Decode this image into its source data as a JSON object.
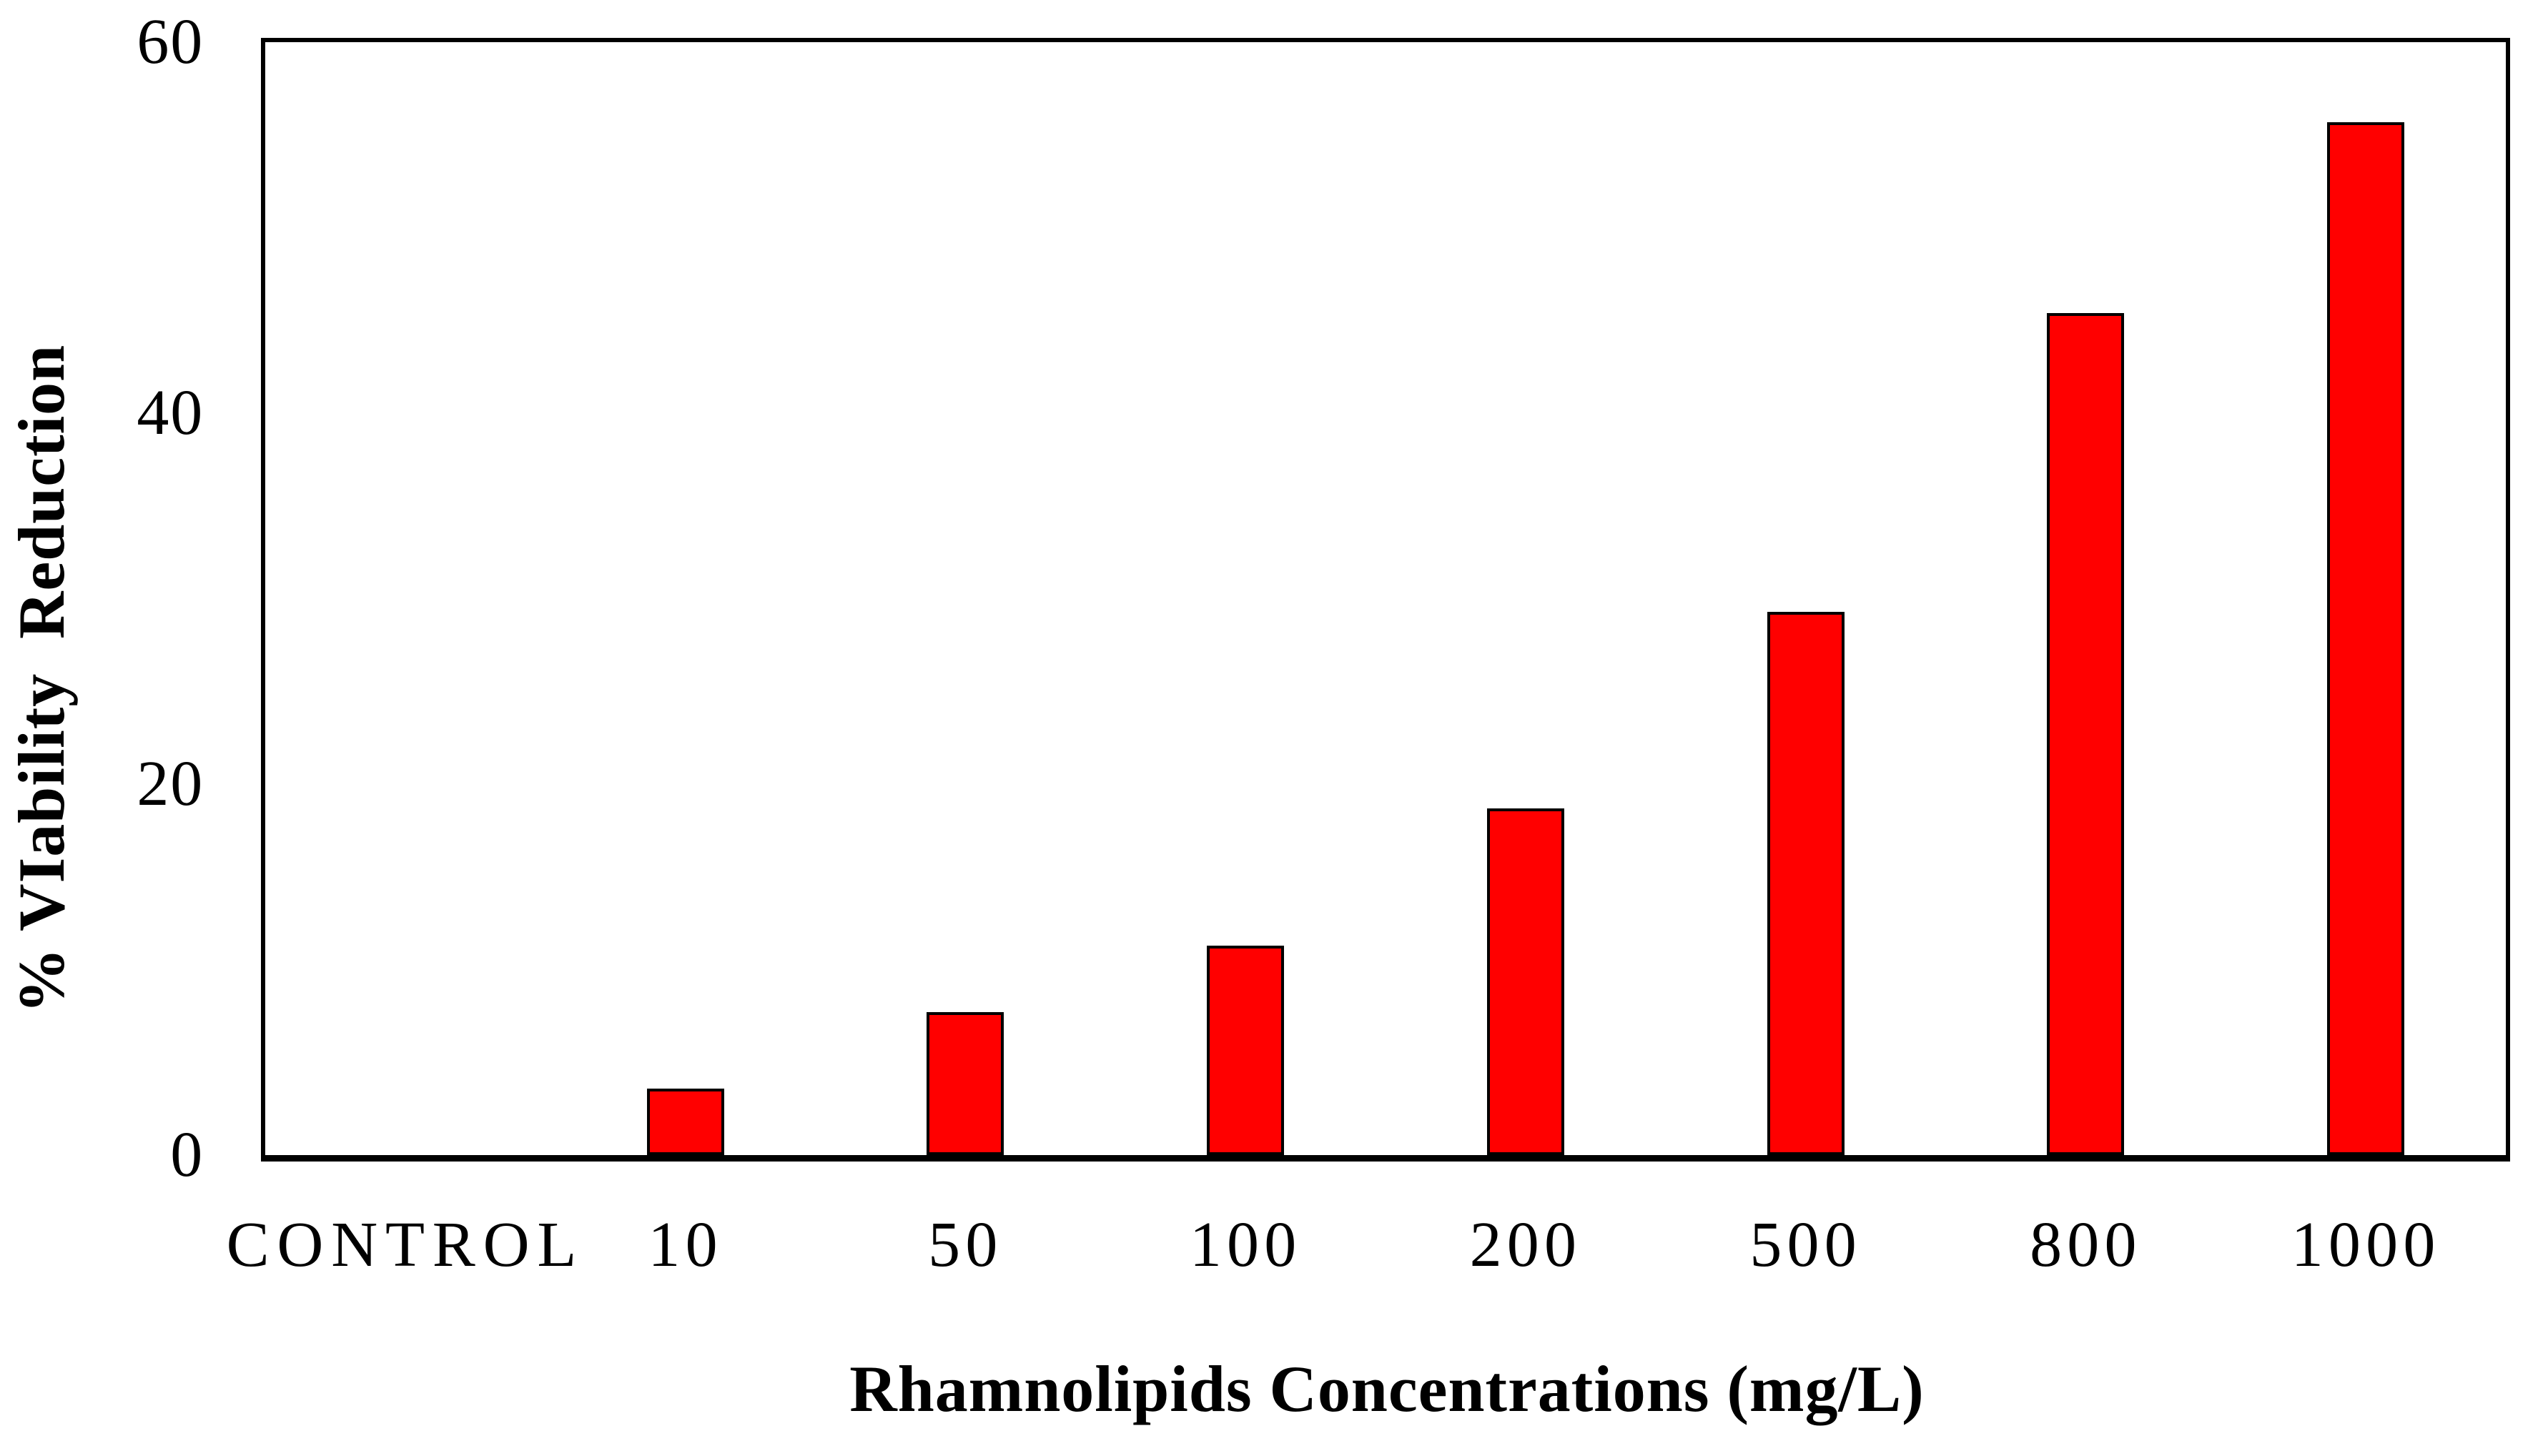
{
  "chart_data": {
    "type": "bar",
    "title": "",
    "categories": [
      "CONTROL",
      "10",
      "50",
      "100",
      "200",
      "500",
      "800",
      "1000"
    ],
    "values": [
      0,
      3.6,
      7.7,
      11.3,
      18.7,
      29.3,
      45.4,
      55.7
    ],
    "xlabel": "Rhamnolipids Concentrations (mg/L)",
    "ylabel": "% VIability  Reduction",
    "ylim": [
      0,
      60
    ],
    "yticks": [
      0,
      20,
      40,
      60
    ],
    "grid": false,
    "legend_position": "none",
    "bar_fill_color": "#ff0000",
    "bar_border_color": "#000000",
    "axis_color": "#000000",
    "background_color": "#ffffff"
  }
}
